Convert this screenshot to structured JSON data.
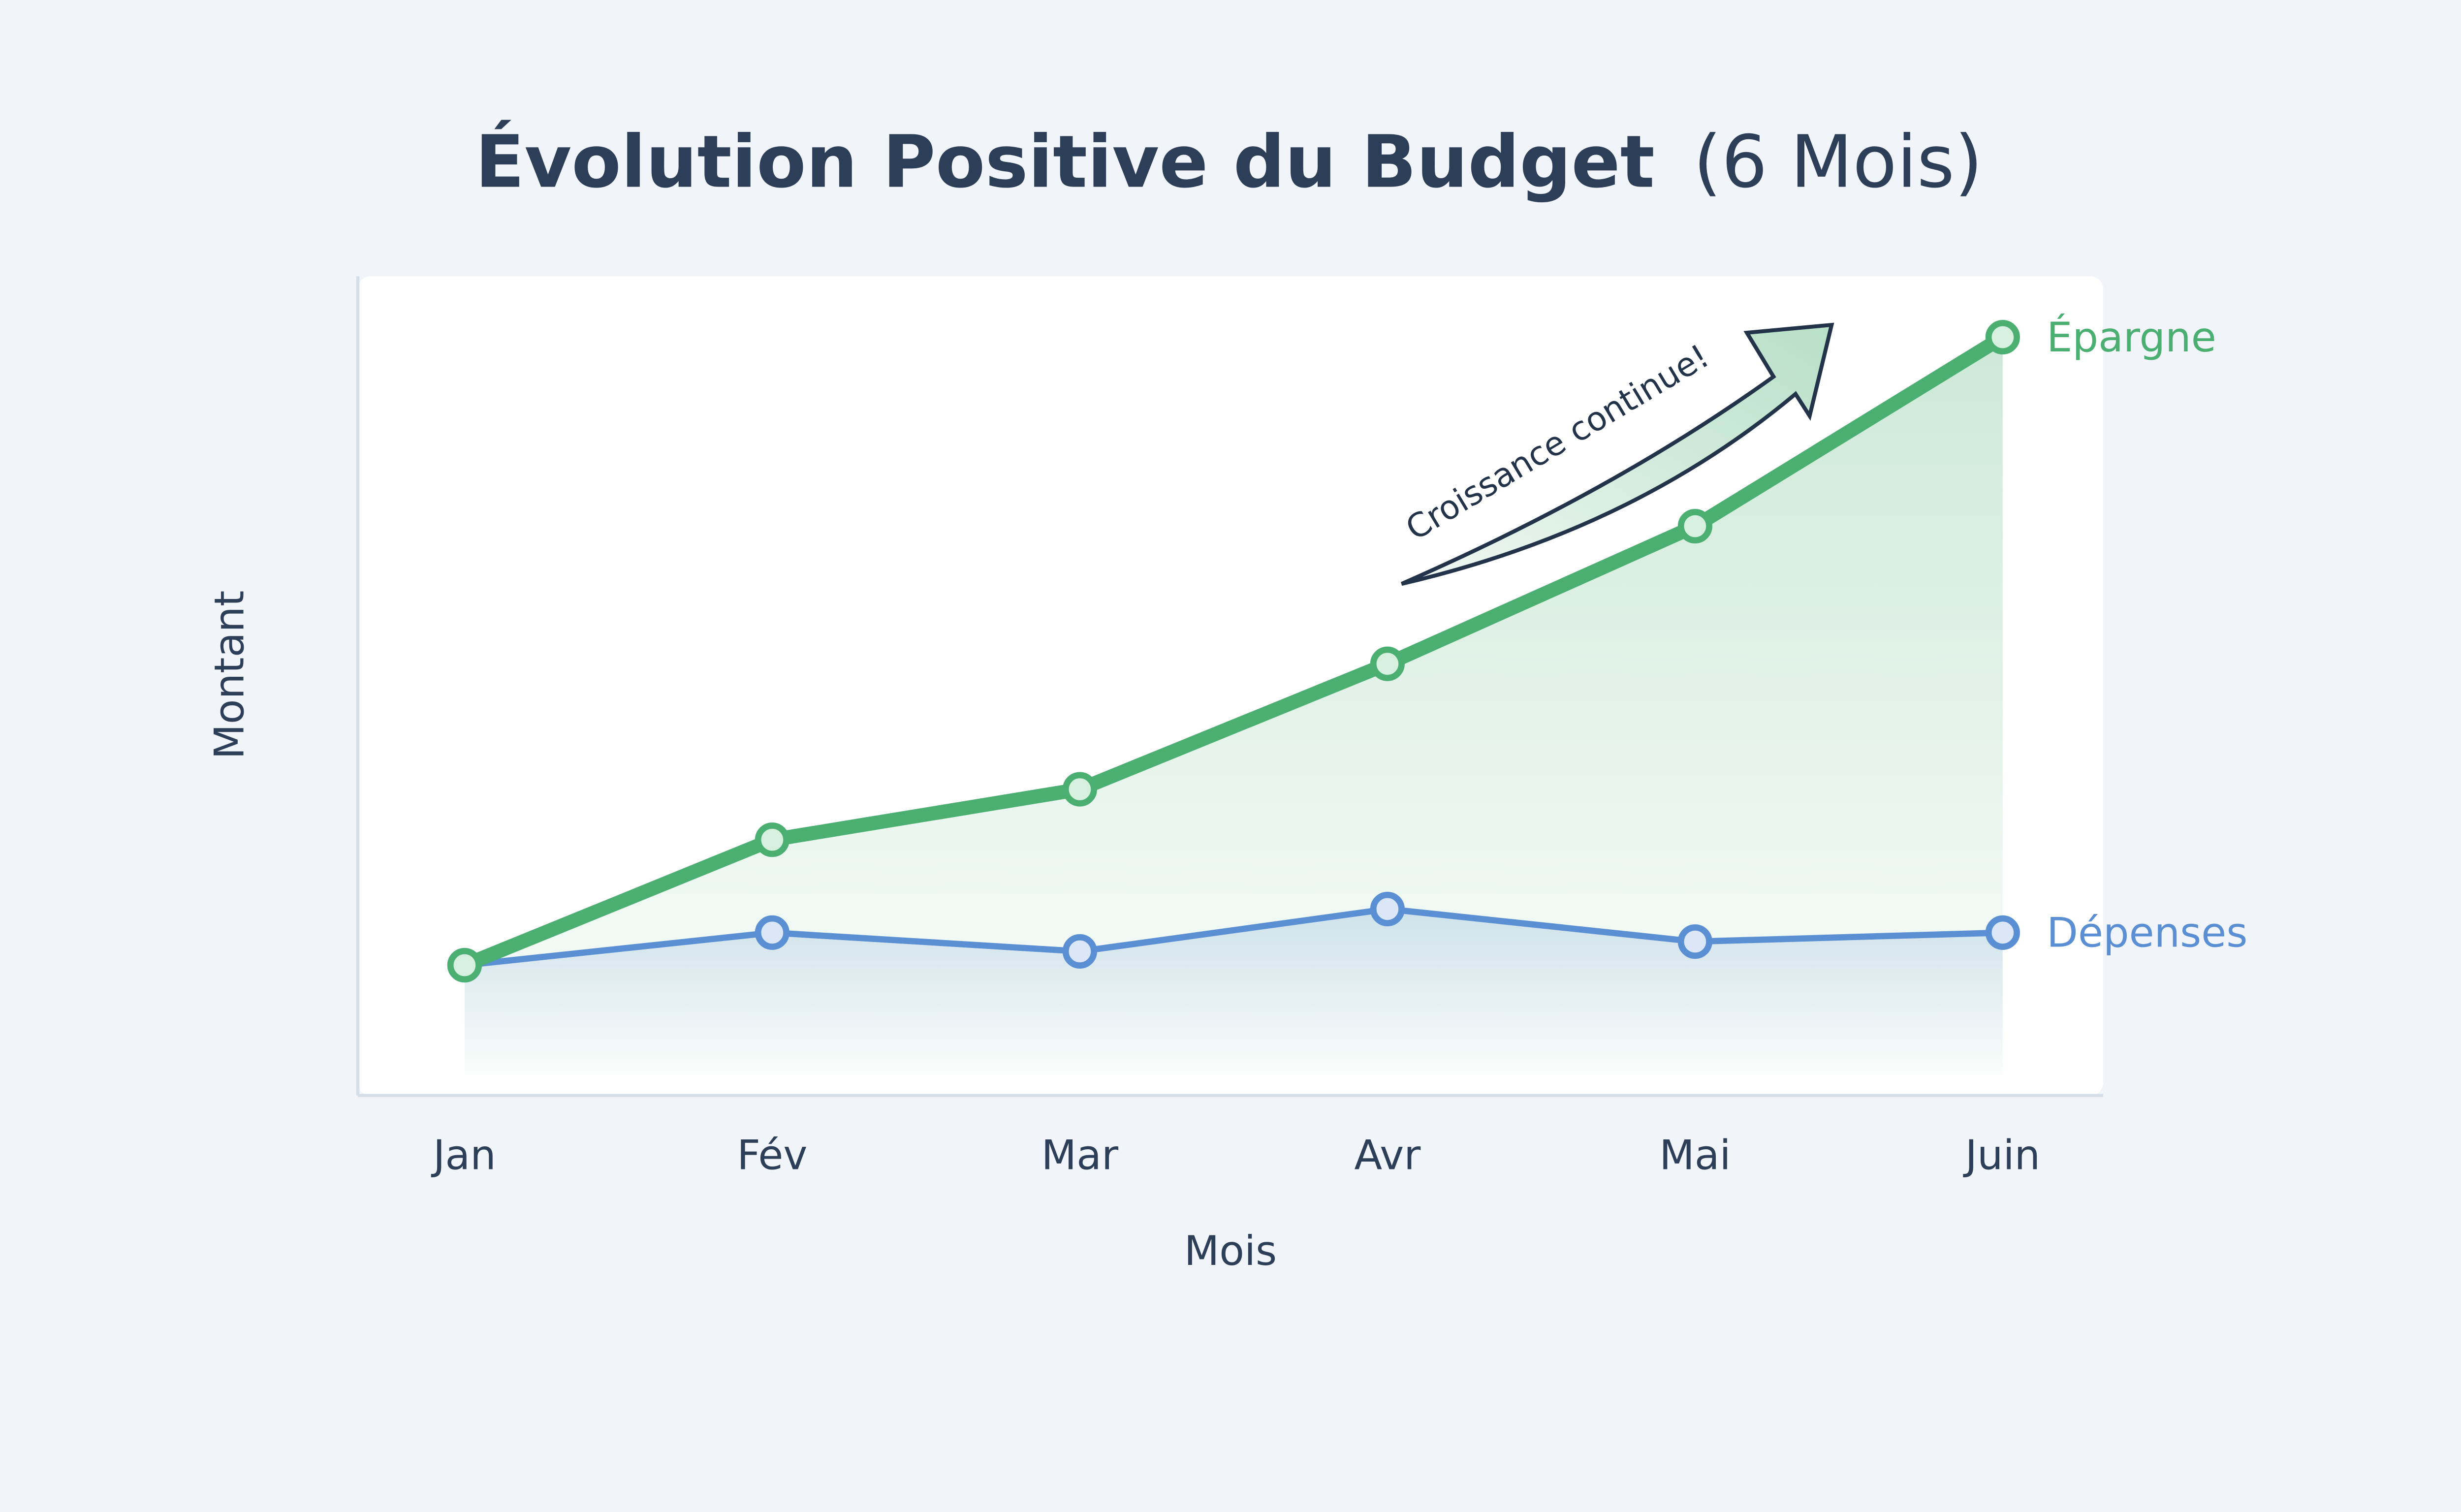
{
  "chart_data": {
    "type": "line",
    "title": "Évolution Positive du Budget",
    "title_suffix": "(6 Mois)",
    "xlabel": "Mois",
    "ylabel": "Montant",
    "categories": [
      "Jan",
      "Fév",
      "Mar",
      "Avr",
      "Mai",
      "Juin"
    ],
    "ylim": [
      0,
      100
    ],
    "grid": false,
    "series": [
      {
        "name": "Épargne",
        "color": "#4caf72",
        "values": [
          15.8,
          31.2,
          37.4,
          52.8,
          69.7,
          92.9
        ]
      },
      {
        "name": "Dépenses",
        "color": "#5b8fd4",
        "values": [
          15.8,
          19.8,
          17.5,
          22.7,
          18.7,
          19.8
        ]
      }
    ],
    "annotation": "Croissance continue!",
    "legend_placement": "right end of lines (direct labels)"
  }
}
